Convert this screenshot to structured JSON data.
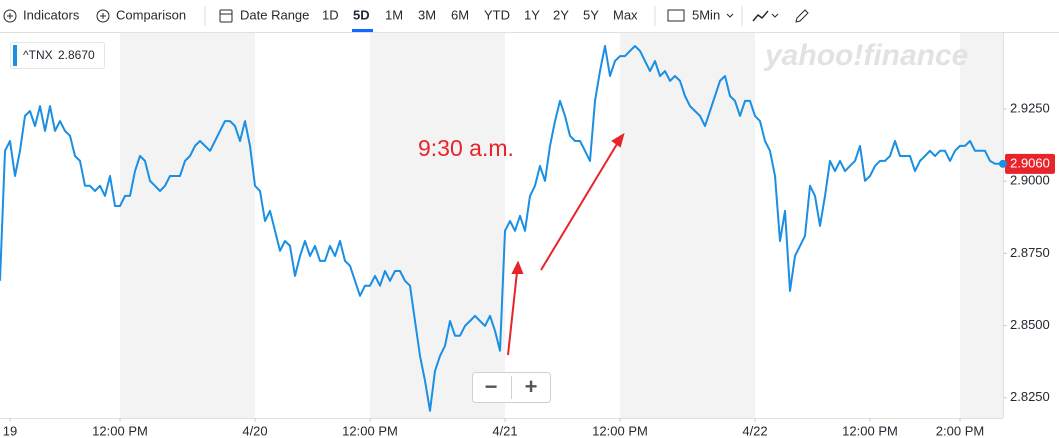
{
  "toolbar": {
    "indicators": "Indicators",
    "comparison": "Comparison",
    "date_range": "Date Range",
    "ranges": [
      "1D",
      "5D",
      "1M",
      "3M",
      "6M",
      "YTD",
      "1Y",
      "2Y",
      "5Y",
      "Max"
    ],
    "selected_range": "5D",
    "interval": "5Min"
  },
  "chart_data": {
    "type": "line",
    "watermark": "yahoo!finance",
    "annotation": "9:30 a.m.",
    "zoom": [
      "−",
      "+"
    ],
    "series": [
      {
        "name": "^TNX",
        "color": "#1a8fe3",
        "legend_value": {
          "value": 2.867,
          "label": "2.8670"
        },
        "last_label": {
          "value": 2.906,
          "label": "2.9060"
        },
        "values": [
          2.8655,
          2.9105,
          2.9139,
          2.9018,
          2.9105,
          2.9226,
          2.9243,
          2.9191,
          2.926,
          2.9174,
          2.926,
          2.9174,
          2.9208,
          2.9174,
          2.9157,
          2.9087,
          2.907,
          2.8984,
          2.8984,
          2.8966,
          2.8984,
          2.8949,
          2.9018,
          2.8914,
          2.8914,
          2.8949,
          2.8949,
          2.9035,
          2.9087,
          2.907,
          2.9001,
          2.8984,
          2.8966,
          2.8984,
          2.9018,
          2.9018,
          2.9018,
          2.907,
          2.9087,
          2.9122,
          2.9139,
          2.9122,
          2.9105,
          2.9139,
          2.9174,
          2.9208,
          2.9208,
          2.9191,
          2.9139,
          2.9208,
          2.9122,
          2.8984,
          2.8966,
          2.8862,
          2.8897,
          2.8828,
          2.8759,
          2.8793,
          2.8776,
          2.8672,
          2.8741,
          2.8793,
          2.8741,
          2.8776,
          2.8724,
          2.8724,
          2.8776,
          2.8741,
          2.8793,
          2.8724,
          2.8707,
          2.8655,
          2.8603,
          2.8638,
          2.8638,
          2.8672,
          2.8638,
          2.8689,
          2.8655,
          2.8689,
          2.8689,
          2.8655,
          2.8638,
          2.8516,
          2.8395,
          2.8309,
          2.8205,
          2.8343,
          2.8395,
          2.843,
          2.8516,
          2.8465,
          2.8465,
          2.8499,
          2.8516,
          2.8534,
          2.8516,
          2.8499,
          2.8534,
          2.8482,
          2.8413,
          2.8828,
          2.8862,
          2.8828,
          2.888,
          2.8828,
          2.8949,
          2.8984,
          2.9053,
          2.9001,
          2.9122,
          2.9208,
          2.9278,
          2.9226,
          2.9157,
          2.9139,
          2.9139,
          2.9105,
          2.907,
          2.9278,
          2.9381,
          2.9468,
          2.9364,
          2.9416,
          2.9433,
          2.9433,
          2.9451,
          2.9468,
          2.9451,
          2.9416,
          2.9381,
          2.9416,
          2.9364,
          2.9381,
          2.9347,
          2.9364,
          2.9347,
          2.9295,
          2.926,
          2.9243,
          2.9226,
          2.9191,
          2.9243,
          2.9295,
          2.9347,
          2.9364,
          2.9295,
          2.9278,
          2.9226,
          2.9278,
          2.9278,
          2.9226,
          2.9208,
          2.9139,
          2.9105,
          2.9018,
          2.8793,
          2.8897,
          2.862,
          2.8741,
          2.8776,
          2.8811,
          2.8984,
          2.8949,
          2.8845,
          2.8949,
          2.907,
          2.9035,
          2.907,
          2.9035,
          2.9053,
          2.907,
          2.9122,
          2.9001,
          2.9018,
          2.9053,
          2.907,
          2.907,
          2.9087,
          2.9139,
          2.9087,
          2.9087,
          2.9087,
          2.9035,
          2.907,
          2.9087,
          2.9105,
          2.9087,
          2.9105,
          2.9105,
          2.907,
          2.9105,
          2.9122,
          2.9122,
          2.9139,
          2.9105,
          2.9105,
          2.9105,
          2.907,
          2.906,
          2.906
        ]
      }
    ],
    "xlim": [
      0,
      200.6
    ],
    "xticks": [
      {
        "value": 2,
        "label": "19"
      },
      {
        "value": 24,
        "label": "12:00 PM"
      },
      {
        "value": 51,
        "label": "4/20"
      },
      {
        "value": 74,
        "label": "12:00 PM"
      },
      {
        "value": 101,
        "label": "4/21"
      },
      {
        "value": 124,
        "label": "12:00 PM"
      },
      {
        "value": 151,
        "label": "4/22"
      },
      {
        "value": 174,
        "label": "12:00 PM"
      },
      {
        "value": 192,
        "label": "2:00 PM"
      }
    ],
    "ylim": [
      2.818,
      2.9513
    ],
    "yticks": [
      {
        "value": 2.825,
        "label": "2.8250"
      },
      {
        "value": 2.85,
        "label": "2.8500"
      },
      {
        "value": 2.875,
        "label": "2.8750"
      },
      {
        "value": 2.9,
        "label": "2.9000"
      },
      {
        "value": 2.925,
        "label": "2.9250"
      }
    ],
    "grid": false
  }
}
